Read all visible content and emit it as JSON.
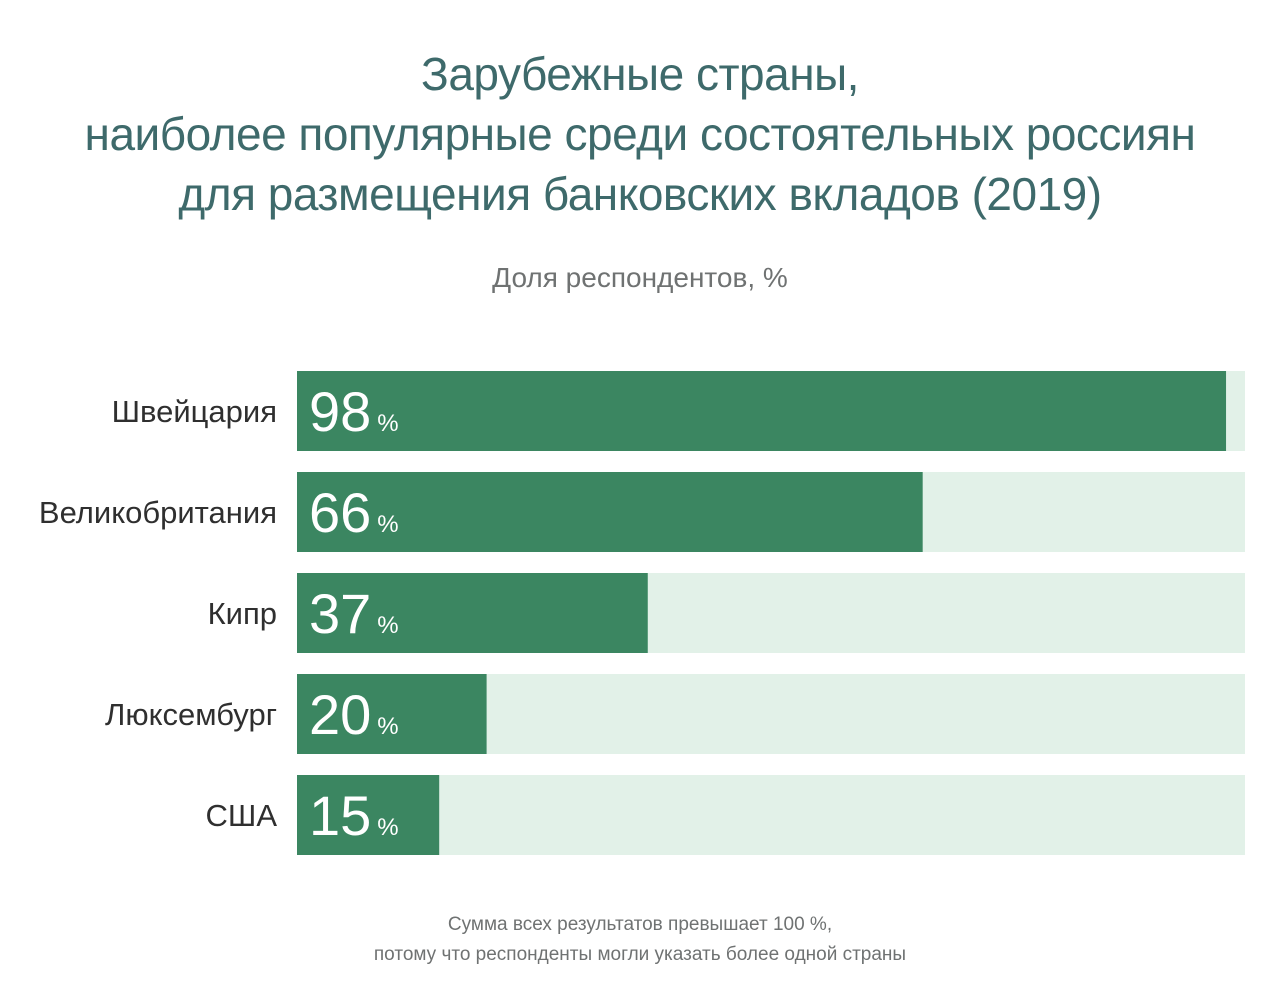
{
  "chart_data": {
    "type": "bar",
    "orientation": "horizontal",
    "title": [
      "Зарубежные страны,",
      "наиболее популярные среди состоятельных россиян",
      "для размещения банковских вкладов (2019)"
    ],
    "subtitle": "Доля респондентов, %",
    "categories": [
      "Швейцария",
      "Великобритания",
      "Кипр",
      "Люксембург",
      "США"
    ],
    "values": [
      98,
      66,
      37,
      20,
      15
    ],
    "unit": "%",
    "xlim": [
      0,
      100
    ],
    "grid": false,
    "legend": "none",
    "footnote": [
      "Сумма всех результатов превышает 100 %,",
      "потому что респонденты могли указать более одной страны"
    ]
  },
  "colors": {
    "bar": "#3b8661",
    "track": "#e2f1e8",
    "title": "#3e6a6b",
    "label": "#2f2f2f",
    "muted": "#6f7272"
  }
}
